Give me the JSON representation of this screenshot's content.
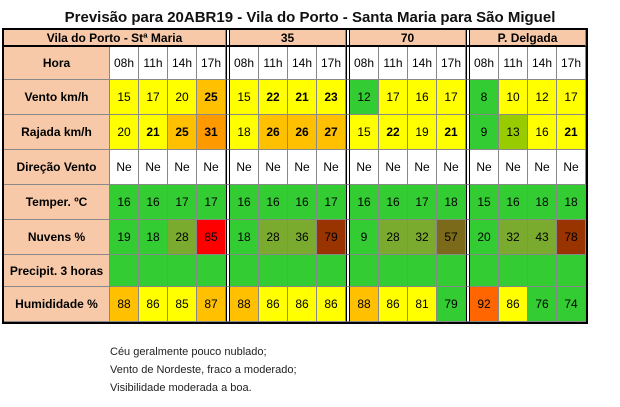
{
  "title": "Previsão para 20ABR19 - Vila do Porto - Santa Maria para São Miguel",
  "groups": [
    "Vila do Porto - Stª Maria",
    "35",
    "70",
    "P. Delgada"
  ],
  "rows": [
    {
      "label": "Hora",
      "values": [
        "08h",
        "11h",
        "14h",
        "17h",
        "08h",
        "11h",
        "14h",
        "17h",
        "08h",
        "11h",
        "14h",
        "17h",
        "08h",
        "11h",
        "14h",
        "17h"
      ],
      "colors": [
        "#ffffff",
        "#ffffff",
        "#ffffff",
        "#ffffff",
        "#ffffff",
        "#ffffff",
        "#ffffff",
        "#ffffff",
        "#ffffff",
        "#ffffff",
        "#ffffff",
        "#ffffff",
        "#ffffff",
        "#ffffff",
        "#ffffff",
        "#ffffff"
      ],
      "bold": [
        false,
        false,
        false,
        false,
        false,
        false,
        false,
        false,
        false,
        false,
        false,
        false,
        false,
        false,
        false,
        false
      ]
    },
    {
      "label": "Vento km/h",
      "values": [
        "15",
        "17",
        "20",
        "25",
        "15",
        "22",
        "21",
        "23",
        "12",
        "17",
        "16",
        "17",
        "8",
        "10",
        "12",
        "17"
      ],
      "colors": [
        "#ffff00",
        "#ffff00",
        "#ffff00",
        "#ffc000",
        "#ffff00",
        "#ffff00",
        "#ffff00",
        "#ffff00",
        "#33cc33",
        "#ffff00",
        "#ffff00",
        "#ffff00",
        "#33cc33",
        "#ffff00",
        "#ffff00",
        "#ffff00"
      ],
      "bold": [
        false,
        false,
        false,
        true,
        false,
        true,
        true,
        true,
        false,
        false,
        false,
        false,
        false,
        false,
        false,
        false
      ]
    },
    {
      "label": "Rajada km/h",
      "values": [
        "20",
        "21",
        "25",
        "31",
        "18",
        "26",
        "26",
        "27",
        "15",
        "22",
        "19",
        "21",
        "9",
        "13",
        "16",
        "21"
      ],
      "colors": [
        "#ffff00",
        "#ffff00",
        "#ffc000",
        "#ff9900",
        "#ffff00",
        "#ffc000",
        "#ffc000",
        "#ffc000",
        "#ffff00",
        "#ffff00",
        "#ffff00",
        "#ffff00",
        "#33cc33",
        "#99cc00",
        "#ffff00",
        "#ffff00"
      ],
      "bold": [
        false,
        true,
        true,
        true,
        false,
        true,
        true,
        true,
        false,
        true,
        false,
        true,
        false,
        false,
        false,
        true
      ]
    },
    {
      "label": "Direção  Vento",
      "values": [
        "Ne",
        "Ne",
        "Ne",
        "Ne",
        "Ne",
        "Ne",
        "Ne",
        "Ne",
        "Ne",
        "Ne",
        "Ne",
        "Ne",
        "Ne",
        "Ne",
        "Ne",
        "Ne"
      ],
      "colors": [
        "#ffffff",
        "#ffffff",
        "#ffffff",
        "#ffffff",
        "#ffffff",
        "#ffffff",
        "#ffffff",
        "#ffffff",
        "#ffffff",
        "#ffffff",
        "#ffffff",
        "#ffffff",
        "#ffffff",
        "#ffffff",
        "#ffffff",
        "#ffffff"
      ],
      "bold": [
        false,
        false,
        false,
        false,
        false,
        false,
        false,
        false,
        false,
        false,
        false,
        false,
        false,
        false,
        false,
        false
      ]
    },
    {
      "label": "Temper. ºC",
      "values": [
        "16",
        "16",
        "17",
        "17",
        "16",
        "16",
        "16",
        "17",
        "16",
        "16",
        "17",
        "18",
        "15",
        "16",
        "18",
        "18"
      ],
      "colors": [
        "#33cc33",
        "#33cc33",
        "#33cc33",
        "#33cc33",
        "#33cc33",
        "#33cc33",
        "#33cc33",
        "#33cc33",
        "#33cc33",
        "#33cc33",
        "#33cc33",
        "#33cc33",
        "#33cc33",
        "#33cc33",
        "#33cc33",
        "#33cc33"
      ],
      "bold": [
        false,
        false,
        false,
        false,
        false,
        false,
        false,
        false,
        false,
        false,
        false,
        false,
        false,
        false,
        false,
        false
      ]
    },
    {
      "label": "Nuvens %",
      "values": [
        "19",
        "18",
        "28",
        "85",
        "18",
        "28",
        "36",
        "79",
        "9",
        "28",
        "32",
        "57",
        "20",
        "32",
        "43",
        "78"
      ],
      "colors": [
        "#33cc33",
        "#33cc33",
        "#7aab2e",
        "#ff0000",
        "#33cc33",
        "#7aab2e",
        "#7aab2e",
        "#993300",
        "#33cc33",
        "#7aab2e",
        "#7aab2e",
        "#7a6a1a",
        "#33cc33",
        "#7aab2e",
        "#7aab2e",
        "#993300"
      ],
      "bold": [
        false,
        false,
        false,
        false,
        false,
        false,
        false,
        false,
        false,
        false,
        false,
        false,
        false,
        false,
        false,
        false
      ]
    },
    {
      "label": "Precipit.    3 horas",
      "values": [
        "",
        "",
        "",
        "",
        "",
        "",
        "",
        "",
        "",
        "",
        "",
        "",
        "",
        "",
        "",
        ""
      ],
      "colors": [
        "#33cc33",
        "#33cc33",
        "#33cc33",
        "#33cc33",
        "#33cc33",
        "#33cc33",
        "#33cc33",
        "#33cc33",
        "#33cc33",
        "#33cc33",
        "#33cc33",
        "#33cc33",
        "#33cc33",
        "#33cc33",
        "#33cc33",
        "#33cc33"
      ],
      "bold": [
        false,
        false,
        false,
        false,
        false,
        false,
        false,
        false,
        false,
        false,
        false,
        false,
        false,
        false,
        false,
        false
      ]
    },
    {
      "label": "Humididade %",
      "values": [
        "88",
        "86",
        "85",
        "87",
        "88",
        "86",
        "86",
        "86",
        "88",
        "86",
        "81",
        "79",
        "92",
        "86",
        "76",
        "74"
      ],
      "colors": [
        "#ffc000",
        "#ffff00",
        "#ffff00",
        "#ffc000",
        "#ffc000",
        "#ffff00",
        "#ffff00",
        "#ffff00",
        "#ffc000",
        "#ffff00",
        "#ffff00",
        "#33cc33",
        "#ff6600",
        "#ffff00",
        "#33cc33",
        "#33cc33"
      ],
      "bold": [
        false,
        false,
        false,
        false,
        false,
        false,
        false,
        false,
        false,
        false,
        false,
        false,
        false,
        false,
        false,
        false
      ]
    }
  ],
  "notes": [
    "Céu  geralmente pouco nublado;",
    "Vento de Nordeste, fraco a moderado;",
    "Visibilidade moderada a boa."
  ]
}
